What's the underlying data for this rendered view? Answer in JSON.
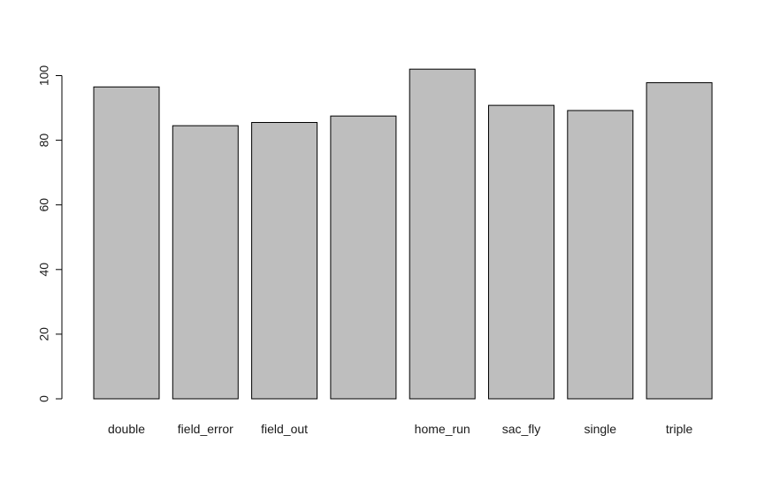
{
  "chart_data": {
    "type": "bar",
    "title": "",
    "xlabel": "",
    "ylabel": "",
    "categories": [
      "double",
      "field_error",
      "field_out",
      "",
      "home_run",
      "sac_fly",
      "single",
      "triple"
    ],
    "values": [
      96.5,
      84.5,
      85.5,
      87.5,
      102,
      90.8,
      89.2,
      97.8
    ],
    "ylim": [
      0,
      102
    ],
    "yticks": [
      0,
      20,
      40,
      60,
      80,
      100
    ],
    "ytick_labels": [
      "0",
      "20",
      "40",
      "60",
      "80",
      "100"
    ],
    "bar_color": "#bebebe",
    "bar_edge_color": "#000000",
    "grid": false,
    "legend": "none"
  }
}
